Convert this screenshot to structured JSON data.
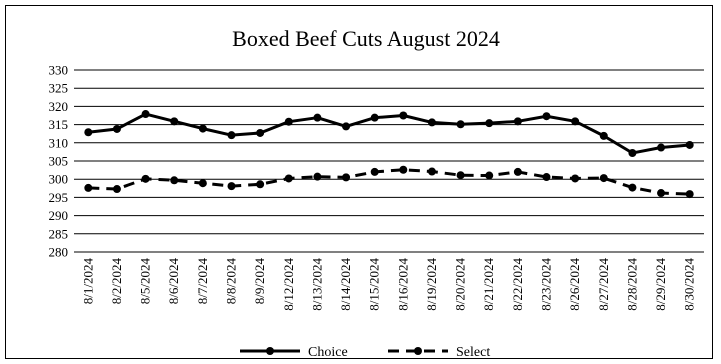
{
  "chart_data": {
    "type": "line",
    "title": "Boxed Beef Cuts August 2024",
    "xlabel": "",
    "ylabel": "",
    "ylim": [
      280,
      330
    ],
    "yticks": [
      280,
      285,
      290,
      295,
      300,
      305,
      310,
      315,
      320,
      325,
      330
    ],
    "grid": true,
    "legend_position": "bottom",
    "categories": [
      "8/1/2024",
      "8/2/2024",
      "8/5/2024",
      "8/6/2024",
      "8/7/2024",
      "8/8/2024",
      "8/9/2024",
      "8/12/2024",
      "8/13/2024",
      "8/14/2024",
      "8/15/2024",
      "8/16/2024",
      "8/19/2024",
      "8/20/2024",
      "8/21/2024",
      "8/22/2024",
      "8/23/2024",
      "8/26/2024",
      "8/27/2024",
      "8/28/2024",
      "8/29/2024",
      "8/30/2024"
    ],
    "series": [
      {
        "name": "Choice",
        "style": "solid",
        "color": "#000000",
        "values": [
          312.9,
          313.8,
          317.9,
          315.9,
          313.9,
          312.1,
          312.7,
          315.8,
          316.9,
          314.5,
          316.9,
          317.5,
          315.6,
          315.1,
          315.4,
          315.9,
          317.3,
          315.9,
          311.9,
          307.2,
          308.7,
          309.4
        ]
      },
      {
        "name": "Select",
        "style": "dashed",
        "color": "#000000",
        "values": [
          297.6,
          297.3,
          300.1,
          299.7,
          298.9,
          298.1,
          298.6,
          300.2,
          300.7,
          300.5,
          302.0,
          302.6,
          302.1,
          301.1,
          301.0,
          302.0,
          300.6,
          300.2,
          300.3,
          297.7,
          296.2,
          295.9
        ]
      }
    ]
  }
}
